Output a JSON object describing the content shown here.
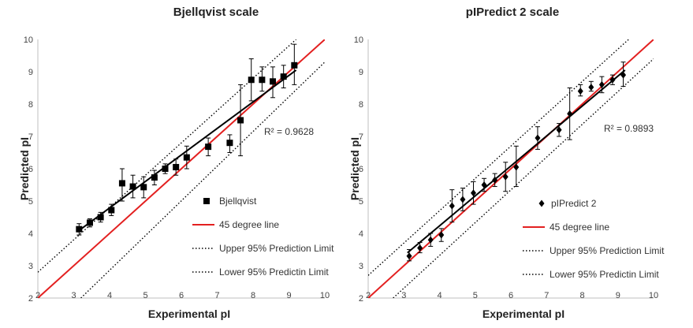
{
  "chart_data": [
    {
      "type": "scatter",
      "title": "Bjellqvist scale",
      "xlabel": "Experimental pI",
      "ylabel": "Predicted pI",
      "xlim": [
        2,
        10
      ],
      "ylim": [
        2,
        10
      ],
      "xticks": [
        2,
        3,
        4,
        5,
        6,
        7,
        8,
        9,
        10
      ],
      "yticks": [
        2,
        3,
        4,
        5,
        6,
        7,
        8,
        9,
        10
      ],
      "grid": false,
      "legend_position": "bottom-right",
      "marker": "square",
      "r2_label": "R² = 0.9628",
      "fit_line": {
        "x": [
          3.1,
          9.2
        ],
        "y": [
          4.05,
          9.05
        ]
      },
      "ideal_line": {
        "x": [
          2,
          10
        ],
        "y": [
          2,
          10
        ]
      },
      "upper_limit": {
        "x": [
          2,
          9.2
        ],
        "y": [
          2.8,
          10
        ]
      },
      "lower_limit": {
        "x": [
          3.2,
          10
        ],
        "y": [
          2,
          9.3
        ]
      },
      "points": [
        {
          "x": 3.15,
          "y": 4.13,
          "low": 3.95,
          "high": 4.3
        },
        {
          "x": 3.45,
          "y": 4.33,
          "low": 4.2,
          "high": 4.45
        },
        {
          "x": 3.75,
          "y": 4.5,
          "low": 4.35,
          "high": 4.65
        },
        {
          "x": 4.05,
          "y": 4.72,
          "low": 4.55,
          "high": 4.9
        },
        {
          "x": 4.35,
          "y": 5.55,
          "low": 5.0,
          "high": 6.0
        },
        {
          "x": 4.65,
          "y": 5.45,
          "low": 5.1,
          "high": 5.8
        },
        {
          "x": 4.95,
          "y": 5.43,
          "low": 5.1,
          "high": 5.75
        },
        {
          "x": 5.25,
          "y": 5.73,
          "low": 5.5,
          "high": 5.95
        },
        {
          "x": 5.55,
          "y": 6.0,
          "low": 5.85,
          "high": 6.15
        },
        {
          "x": 5.85,
          "y": 6.05,
          "low": 5.8,
          "high": 6.3
        },
        {
          "x": 6.15,
          "y": 6.35,
          "low": 6.0,
          "high": 6.7
        },
        {
          "x": 6.75,
          "y": 6.68,
          "low": 6.4,
          "high": 6.95
        },
        {
          "x": 7.35,
          "y": 6.8,
          "low": 6.5,
          "high": 7.05
        },
        {
          "x": 7.65,
          "y": 7.5,
          "low": 6.4,
          "high": 8.6
        },
        {
          "x": 7.95,
          "y": 8.75,
          "low": 8.1,
          "high": 9.4
        },
        {
          "x": 8.25,
          "y": 8.75,
          "low": 8.4,
          "high": 9.15
        },
        {
          "x": 8.55,
          "y": 8.7,
          "low": 8.2,
          "high": 9.15
        },
        {
          "x": 8.85,
          "y": 8.85,
          "low": 8.5,
          "high": 9.2
        },
        {
          "x": 9.15,
          "y": 9.2,
          "low": 8.6,
          "high": 9.85
        }
      ],
      "legend": [
        "Bjellqvist",
        "45 degree line",
        "Upper 95% Prediction Limit",
        "Lower 95% Predictin Limit"
      ],
      "colors": {
        "ideal": "#e32020",
        "fit": "#000000",
        "limits": "#000000",
        "marker": "#000000"
      }
    },
    {
      "type": "scatter",
      "title": "pIPredict 2 scale",
      "xlabel": "Experimental pI",
      "ylabel": "Predicted pI",
      "xlim": [
        2,
        10
      ],
      "ylim": [
        2,
        10
      ],
      "xticks": [
        2,
        3,
        4,
        5,
        6,
        7,
        8,
        9,
        10
      ],
      "yticks": [
        2,
        3,
        4,
        5,
        6,
        7,
        8,
        9,
        10
      ],
      "grid": false,
      "legend_position": "bottom-right",
      "marker": "diamond",
      "r2_label": "R² = 0.9893",
      "fit_line": {
        "x": [
          3.1,
          9.2
        ],
        "y": [
          3.4,
          9.05
        ]
      },
      "ideal_line": {
        "x": [
          2,
          10
        ],
        "y": [
          2,
          10
        ]
      },
      "upper_limit": {
        "x": [
          2,
          9.3
        ],
        "y": [
          2.7,
          10
        ]
      },
      "lower_limit": {
        "x": [
          2.7,
          10
        ],
        "y": [
          2,
          9.4
        ]
      },
      "points": [
        {
          "x": 3.15,
          "y": 3.3,
          "low": 3.15,
          "high": 3.5
        },
        {
          "x": 3.45,
          "y": 3.55,
          "low": 3.4,
          "high": 3.72
        },
        {
          "x": 3.75,
          "y": 3.8,
          "low": 3.6,
          "high": 4.0
        },
        {
          "x": 4.05,
          "y": 3.95,
          "low": 3.75,
          "high": 4.15
        },
        {
          "x": 4.35,
          "y": 4.85,
          "low": 4.35,
          "high": 5.35
        },
        {
          "x": 4.65,
          "y": 5.05,
          "low": 4.7,
          "high": 5.4
        },
        {
          "x": 4.95,
          "y": 5.25,
          "low": 4.9,
          "high": 5.6
        },
        {
          "x": 5.25,
          "y": 5.5,
          "low": 5.3,
          "high": 5.7
        },
        {
          "x": 5.55,
          "y": 5.65,
          "low": 5.45,
          "high": 5.85
        },
        {
          "x": 5.85,
          "y": 5.75,
          "low": 5.3,
          "high": 6.2
        },
        {
          "x": 6.15,
          "y": 6.05,
          "low": 5.45,
          "high": 6.7
        },
        {
          "x": 6.75,
          "y": 6.95,
          "low": 6.6,
          "high": 7.3
        },
        {
          "x": 7.35,
          "y": 7.2,
          "low": 7.0,
          "high": 7.4
        },
        {
          "x": 7.65,
          "y": 7.7,
          "low": 6.9,
          "high": 8.5
        },
        {
          "x": 7.95,
          "y": 8.4,
          "low": 8.25,
          "high": 8.6
        },
        {
          "x": 8.25,
          "y": 8.52,
          "low": 8.4,
          "high": 8.7
        },
        {
          "x": 8.55,
          "y": 8.6,
          "low": 8.35,
          "high": 8.85
        },
        {
          "x": 8.85,
          "y": 8.75,
          "low": 8.6,
          "high": 8.9
        },
        {
          "x": 9.15,
          "y": 8.9,
          "low": 8.55,
          "high": 9.3
        }
      ],
      "legend": [
        "pIPredict 2",
        "45 degree line",
        "Upper 95% Prediction Limit",
        "Lower 95% Predictin Limit"
      ],
      "colors": {
        "ideal": "#e32020",
        "fit": "#000000",
        "limits": "#000000",
        "marker": "#000000"
      }
    }
  ]
}
